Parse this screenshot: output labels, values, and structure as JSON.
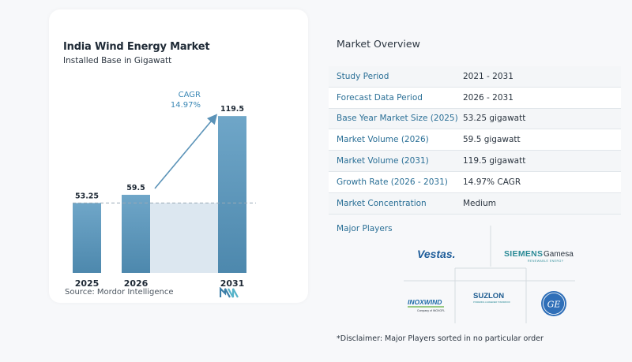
{
  "chart": {
    "title": "India Wind Energy Market",
    "subtitle": "Installed Base in Gigawatt",
    "source": "Source:  Mordor Intelligence",
    "cagr_label": "CAGR",
    "cagr_value": "14.97%"
  },
  "chart_data": {
    "type": "bar",
    "title": "India Wind Energy Market",
    "subtitle": "Installed Base in Gigawatt",
    "categories": [
      "2025",
      "2026",
      "2031"
    ],
    "values": [
      53.25,
      59.5,
      119.5
    ],
    "value_labels": [
      "53.25",
      "59.5",
      "119.5"
    ],
    "ylim": [
      0,
      125
    ],
    "grid": false,
    "reference_line": 53.25,
    "annotation": {
      "label": "CAGR",
      "value": "14.97%"
    }
  },
  "colors": {
    "bar_top": "#6ba3c6",
    "bar_bottom": "#4e8aaf",
    "shade": "#dce7f0",
    "arrow": "#5b93b8",
    "accent_text": "#2a6f96"
  },
  "overview": {
    "title": "Market Overview",
    "rows": [
      {
        "label": "Study Period",
        "value": "2021 - 2031"
      },
      {
        "label": "Forecast Data Period",
        "value": "2026 - 2031"
      },
      {
        "label": "Base Year Market Size (2025)",
        "value": "53.25 gigawatt"
      },
      {
        "label": "Market Volume (2026)",
        "value": "59.5 gigawatt"
      },
      {
        "label": "Market Volume (2031)",
        "value": "119.5 gigawatt"
      },
      {
        "label": "Growth Rate (2026 - 2031)",
        "value": "14.97% CAGR"
      },
      {
        "label": "Market Concentration",
        "value": "Medium"
      }
    ]
  },
  "players": {
    "title": "Major Players",
    "vestas": "Vestas.",
    "siemens_main": "SIEMENS",
    "siemens_sub": "Gamesa",
    "siemens_tag": "RENEWABLE ENERGY",
    "suzlon": "SUZLON",
    "suzlon_tag": "POWERING A GREENER TOMORROW",
    "inox_main": "INOXWIND",
    "inox_tag": "Company of INOXGFL",
    "ge": "GE"
  },
  "disclaimer": "*Disclaimer: Major Players sorted in no particular order"
}
